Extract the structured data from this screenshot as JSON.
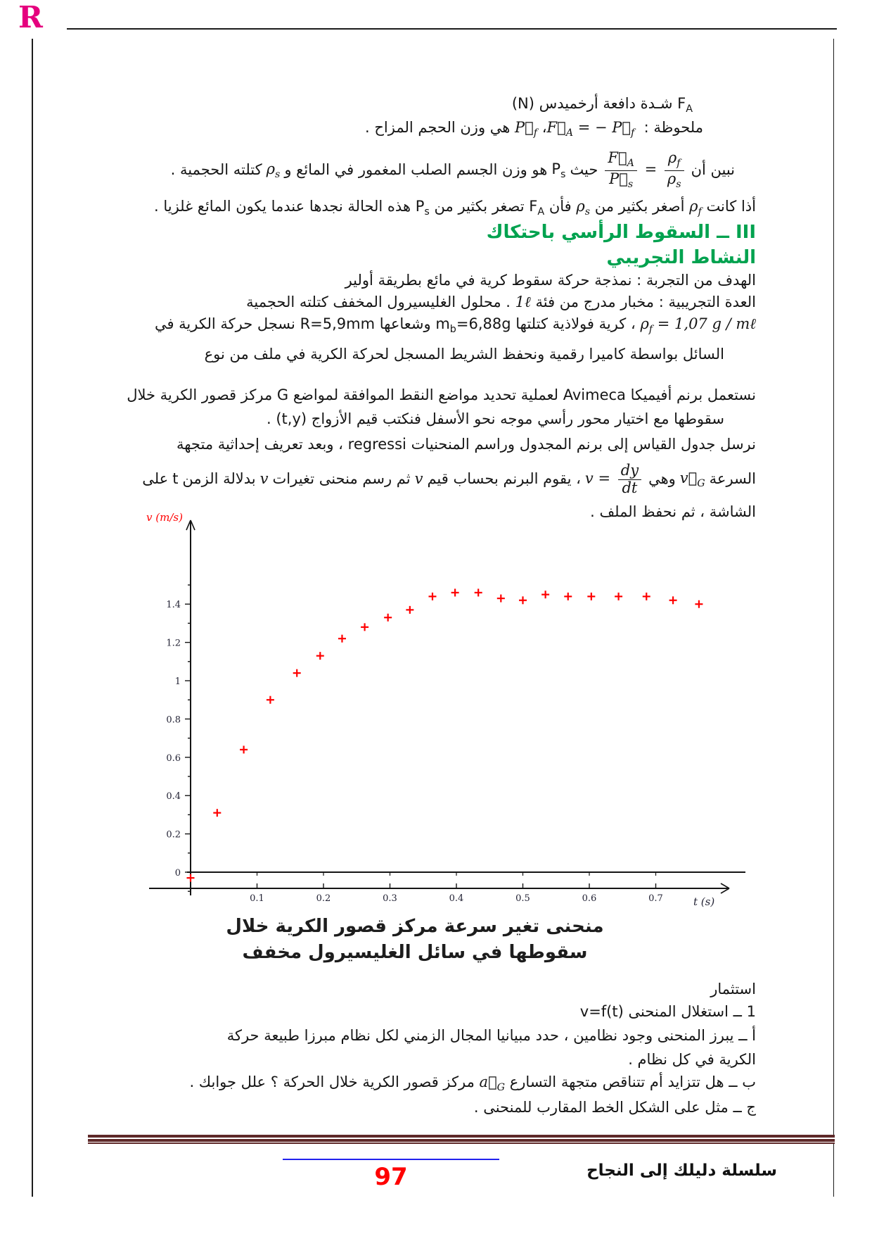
{
  "logo": {
    "text": "R"
  },
  "colors": {
    "green": "#00a24f",
    "red": "#ff0000",
    "maroon": "#5e2929",
    "blue": "#2222ee",
    "magenta": "#e5007e",
    "marker_red": "#ff0000"
  },
  "intro": {
    "l1_sym": "F",
    "l1_sub": "A",
    "l1_text": "شـدة دافعة أرخميدس",
    "l1_unit": "(N)",
    "l2_label": "ملحوظة :",
    "l2_sep": "،",
    "l2_text": "هي وزن الحجم المزاح .",
    "l3_pre": "نبين أن",
    "l3_mid": "حيث",
    "l3_t1": "هو وزن الجسم الصلب المغمور في المائع و",
    "l3_t2": "كتلته الحجمية .",
    "l4_a": "أذا كانت",
    "l4_b": "أصغر بكثير من",
    "l4_c": "فأن",
    "l4_d": "تصغر بكثير من",
    "l4_e": "هذه الحالة نجدها عندما يكون المائع غلزيا ."
  },
  "sections": {
    "h1": "III ــ السقوط الرأسي باحتكاك",
    "h2": "النشاط التجريبي"
  },
  "exp": {
    "e1": "الهدف من التجربة : نمذجة حركة سقوط كرية في مائع بطريقة أولير",
    "e2_a": "العدة التجريبية : مخبار مدرج من فئة",
    "e2_lit": "1ℓ",
    "e2_b": ". محلول الغليسيرول المخفف كتلته الحجمية",
    "e3_a": "، كرية فولاذية كتلتها",
    "e3_b": "وشعاعها",
    "e3_R": "R=5,9mm",
    "e3_c": "نسجل حركة الكرية في",
    "e4": "السائل بواسطة كاميرا رقمية ونحفظ الشريط المسجل لحركة الكرية في ملف من نوع",
    "e5_a": "نستعمل برنم أفيميكا",
    "e5_latin": "Avimeca",
    "e5_b": "لعملية تحديد مواضع النقط الموافقة لمواضع",
    "e5_G": "G",
    "e5_c": "مركز قصور الكرية خلال",
    "e6_a": "سقوطها مع اختيار محور رأسي موجه نحو الأسفل فنكتب قيم الأزواج",
    "e6_ty": "(t,y)",
    "e6_b": ".",
    "e7_a": "نرسل جدول القياس إلى برنم المجدول وراسم المنحنيات",
    "e7_latin": "regressi",
    "e7_b": "، وبعد تعريف إحداثية متجهة",
    "e8_a": "السرعة",
    "e8_b": "وهي",
    "e8_c": "، يقوم البرنم بحساب قيم",
    "e8_v1": "v",
    "e8_d": "ثم رسم منحنى تغيرات",
    "e8_v2": "v",
    "e8_e": "بدلالة الزمن",
    "e8_t": "t",
    "e8_f": "على",
    "e9": "الشاشة ،  ثم نحفظ الملف ."
  },
  "math": {
    "vecF": "F⃗",
    "vecP": "P⃗",
    "subA": "A",
    "subf": "f",
    "subs": "s",
    "eqminus": "= −",
    "eq": "=",
    "rho": "ρ",
    "rho_val": "= 1,07 g / mℓ",
    "F": "F",
    "P": "P",
    "m": "m",
    "subb": "b",
    "m_val": "=6,88g",
    "vecV": "v⃗",
    "subG": "G",
    "v": "v",
    "dy": "dy",
    "dt": "dt",
    "veca": "a⃗"
  },
  "caption": {
    "line1": "منحنى تغير سرعة مركز قصور الكرية خلال",
    "line2": "سقوطها في سائل الغليسيرول مخفف"
  },
  "invest": {
    "i0": "استثمار",
    "i1_a": "1 ــ استغلال المنحنى",
    "i1_f": "v=f(t)",
    "i2": "أ ــ يبرز المنحنى وجود نظامين ، حدد مبيانيا المجال الزمني لكل نظام مبرزا طبيعة حركة",
    "i3": "الكرية في كل نظام .",
    "i4_a": "ب ــ هل تتزايد أم تتناقص متجهة التسارع",
    "i4_b": "مركز قصور الكرية خلال الحركة ؟ علل جوابك .",
    "i5": "ج ــ مثل على الشكل الخط المقارب للمنحنى ."
  },
  "footer": {
    "page_number": "97",
    "brand": "سلسلة دليلك إلى النجاح"
  },
  "chart_data": {
    "type": "scatter",
    "marker": "+",
    "marker_color": "#ff0000",
    "title": "",
    "xlabel": "t (s)",
    "ylabel": "v (m/s)",
    "xlim": [
      0,
      0.82
    ],
    "ylim": [
      -0.12,
      1.58
    ],
    "grid": false,
    "x_ticks": [
      0.1,
      0.2,
      0.3,
      0.4,
      0.5,
      0.6,
      0.7
    ],
    "y_ticks": [
      0,
      0.2,
      0.4,
      0.6,
      0.8,
      1,
      1.2,
      1.4
    ],
    "points": [
      [
        0.0,
        -0.03
      ],
      [
        0.04,
        0.31
      ],
      [
        0.08,
        0.64
      ],
      [
        0.12,
        0.9
      ],
      [
        0.16,
        1.04
      ],
      [
        0.195,
        1.13
      ],
      [
        0.228,
        1.22
      ],
      [
        0.262,
        1.28
      ],
      [
        0.297,
        1.33
      ],
      [
        0.33,
        1.37
      ],
      [
        0.364,
        1.44
      ],
      [
        0.398,
        1.46
      ],
      [
        0.433,
        1.46
      ],
      [
        0.467,
        1.43
      ],
      [
        0.5,
        1.42
      ],
      [
        0.534,
        1.45
      ],
      [
        0.568,
        1.44
      ],
      [
        0.603,
        1.44
      ],
      [
        0.644,
        1.44
      ],
      [
        0.686,
        1.44
      ],
      [
        0.726,
        1.42
      ],
      [
        0.765,
        1.4
      ]
    ]
  }
}
